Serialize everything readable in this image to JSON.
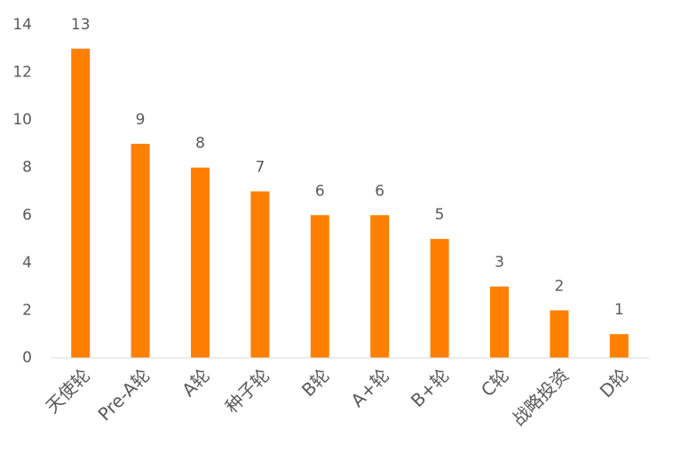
{
  "chart_data": {
    "type": "bar",
    "categories": [
      "天使轮",
      "Pre-A轮",
      "A轮",
      "种子轮",
      "B轮",
      "A+轮",
      "B+轮",
      "C轮",
      "战略投资",
      "D轮"
    ],
    "values": [
      13,
      9,
      8,
      7,
      6,
      6,
      5,
      3,
      2,
      1
    ],
    "color": "#ff8000",
    "ylim": [
      0,
      14
    ],
    "yticks": [
      0,
      2,
      4,
      6,
      8,
      10,
      12,
      14
    ],
    "grid": false,
    "data_labels": true
  }
}
